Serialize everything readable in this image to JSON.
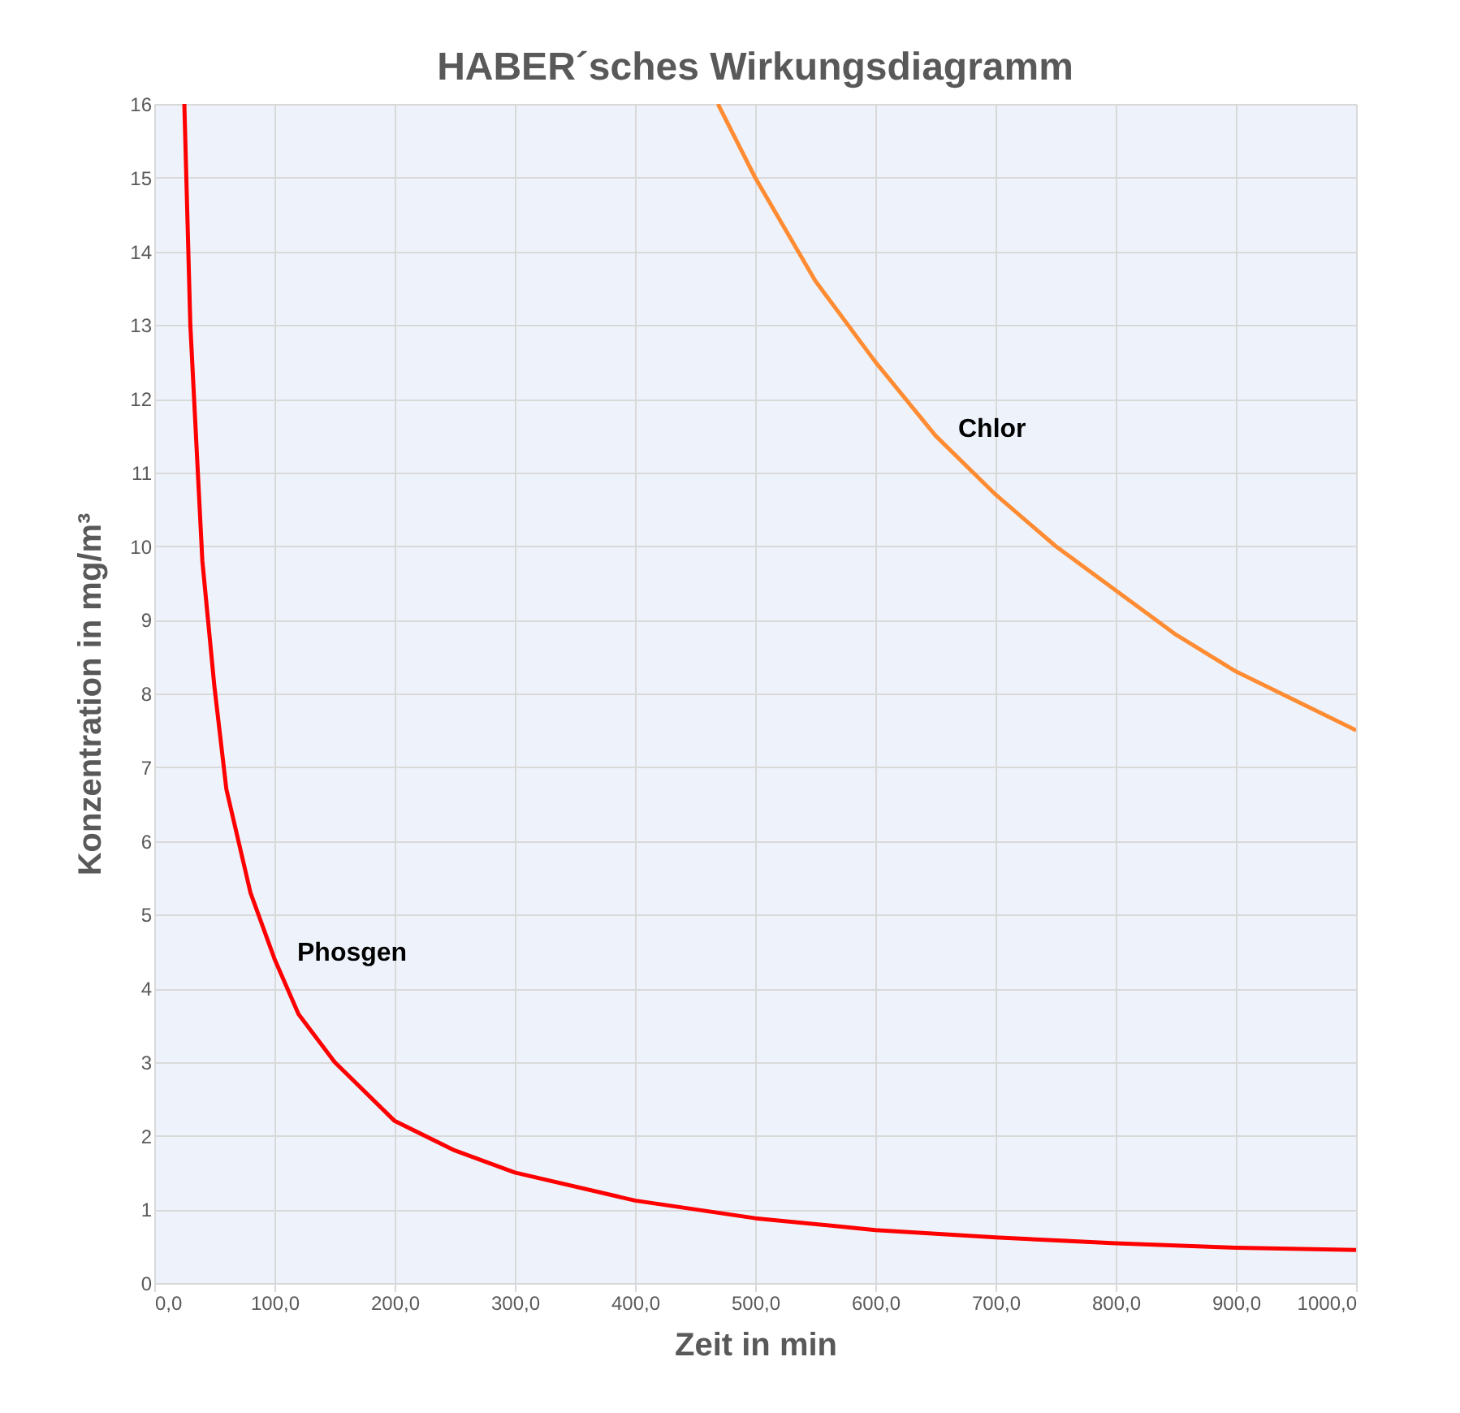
{
  "chart_data": {
    "type": "line",
    "title": "HABER´sches Wirkungsdiagramm",
    "xlabel": "Zeit in min",
    "ylabel": "Konzentration in mg/m³",
    "series": [
      {
        "name": "Phosgen",
        "color": "#ff0000",
        "x": [
          25,
          30,
          40,
          50,
          60,
          80,
          100,
          120,
          150,
          200,
          250,
          300,
          400,
          500,
          600,
          700,
          800,
          900,
          1000
        ],
        "values": [
          16,
          13,
          9.8,
          8.1,
          6.7,
          5.3,
          4.4,
          3.65,
          3.0,
          2.2,
          1.8,
          1.5,
          1.12,
          0.88,
          0.72,
          0.62,
          0.54,
          0.48,
          0.45
        ]
      },
      {
        "name": "Chlor",
        "color": "#ff8c33",
        "x": [
          469,
          500,
          550,
          600,
          650,
          700,
          750,
          800,
          850,
          900,
          950,
          1000
        ],
        "values": [
          16,
          15,
          13.6,
          12.5,
          11.5,
          10.7,
          10,
          9.4,
          8.8,
          8.3,
          7.9,
          7.5
        ]
      }
    ],
    "xlim": [
      0,
      1000
    ],
    "ylim": [
      0,
      16
    ],
    "xticks": [
      {
        "value": 0,
        "label": "0,0"
      },
      {
        "value": 100,
        "label": "100,0"
      },
      {
        "value": 200,
        "label": "200,0"
      },
      {
        "value": 300,
        "label": "300,0"
      },
      {
        "value": 400,
        "label": "400,0"
      },
      {
        "value": 500,
        "label": "500,0"
      },
      {
        "value": 600,
        "label": "600,0"
      },
      {
        "value": 700,
        "label": "700,0"
      },
      {
        "value": 800,
        "label": "800,0"
      },
      {
        "value": 900,
        "label": "900,0"
      },
      {
        "value": 1000,
        "label": "1000,0"
      }
    ],
    "yticks": [
      0,
      1,
      2,
      3,
      4,
      5,
      6,
      7,
      8,
      9,
      10,
      11,
      12,
      13,
      14,
      15,
      16
    ],
    "grid": true,
    "marker": "none",
    "line_style": "solid"
  }
}
